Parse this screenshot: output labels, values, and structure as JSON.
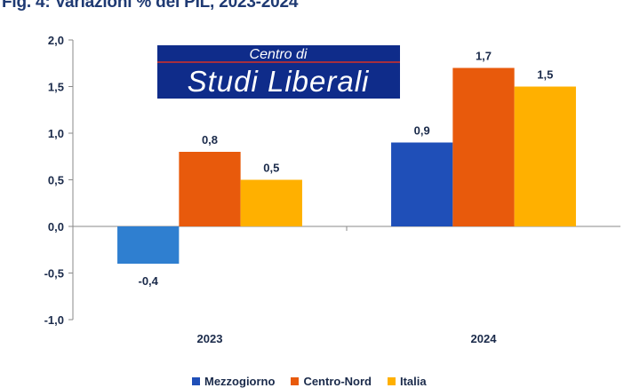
{
  "title": "Fig. 4: Variazioni % del PIL, 2023-2024",
  "logo": {
    "line1": "Centro di",
    "line2": "Studi Liberali",
    "bg_color": "#0f2c8a",
    "text_color": "#ffffff",
    "rule_color": "#d93025"
  },
  "chart_data": {
    "type": "bar",
    "categories": [
      "2023",
      "2024"
    ],
    "series": [
      {
        "name": "Mezzogiorno",
        "color": "#1f4fb8",
        "color_2023": "#2f7fd0",
        "values": [
          -0.4,
          0.9
        ],
        "labels": [
          "-0,4",
          "0,9"
        ]
      },
      {
        "name": "Centro-Nord",
        "color": "#e85a0c",
        "values": [
          0.8,
          1.7
        ],
        "labels": [
          "0,8",
          "1,7"
        ]
      },
      {
        "name": "Italia",
        "color": "#ffb000",
        "values": [
          0.5,
          1.5
        ],
        "labels": [
          "0,5",
          "1,5"
        ]
      }
    ],
    "ylim": [
      -1.0,
      2.0
    ],
    "yticks": [
      -1.0,
      -0.5,
      0.0,
      0.5,
      1.0,
      1.5,
      2.0
    ],
    "ytick_labels": [
      "-1,0",
      "-0,5",
      "0,0",
      "0,5",
      "1,0",
      "1,5",
      "2,0"
    ],
    "xlabel": "",
    "ylabel": "",
    "grid": false,
    "legend": "bottom"
  }
}
